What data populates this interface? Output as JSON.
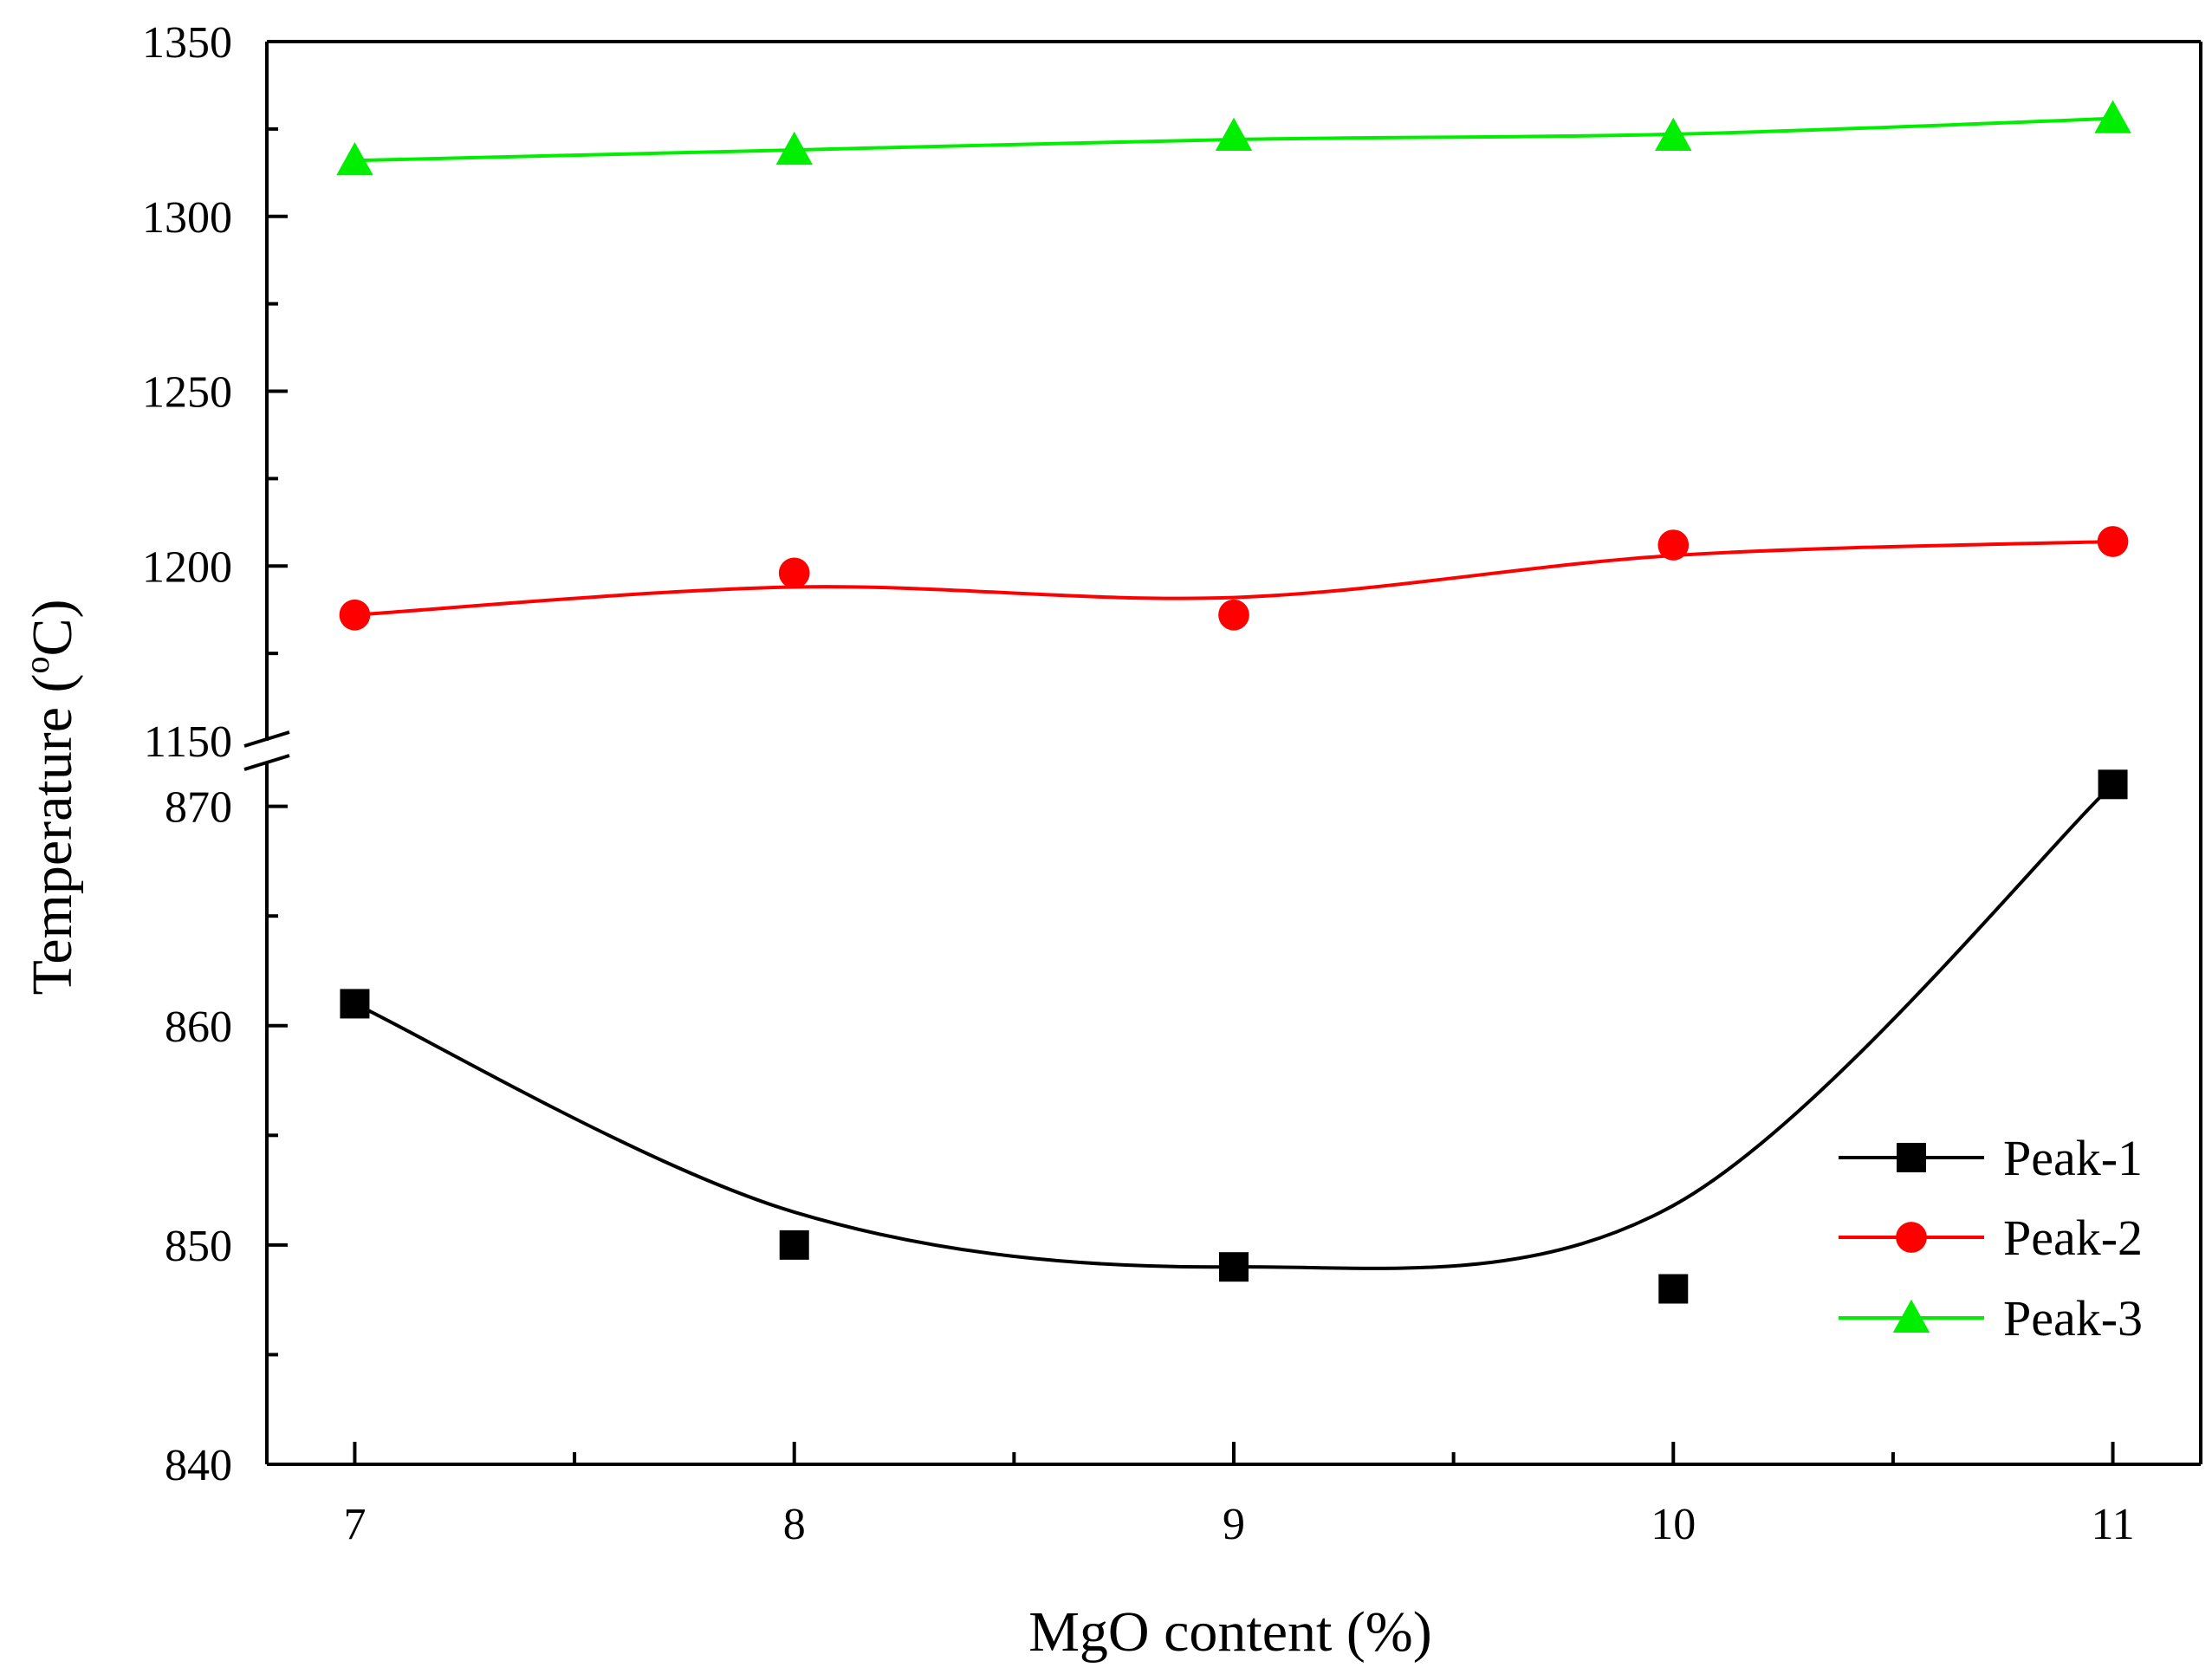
{
  "chart_data": {
    "type": "line",
    "title": "",
    "xlabel": "MgO content (%)",
    "ylabel_main": "Temperature (",
    "ylabel_sup": "o",
    "ylabel_tail": "C)",
    "x": [
      7,
      8,
      9,
      10,
      11
    ],
    "x_ticks": [
      "7",
      "8",
      "9",
      "10",
      "11"
    ],
    "xlim": [
      6.8,
      11.2
    ],
    "broken_y_axis": true,
    "upper_ylim": [
      1150,
      1350
    ],
    "upper_y_ticks": [
      "1150",
      "1200",
      "1250",
      "1300",
      "1350"
    ],
    "lower_ylim": [
      840,
      872
    ],
    "lower_y_ticks": [
      "840",
      "850",
      "860",
      "870"
    ],
    "legend_position": "bottom-right",
    "series": [
      {
        "name": "Peak-1",
        "marker": "square",
        "color": "#000000",
        "segment": "lower",
        "values": [
          861,
          850,
          849,
          848,
          871
        ],
        "fit_curve": [
          861,
          851.5,
          849,
          851.8,
          871
        ]
      },
      {
        "name": "Peak-2",
        "marker": "circle",
        "color": "#ff0000",
        "segment": "upper",
        "values": [
          1186,
          1198,
          1186,
          1206,
          1207
        ],
        "fit_curve": [
          1186,
          1194,
          1191,
          1203,
          1207
        ]
      },
      {
        "name": "Peak-3",
        "marker": "triangle",
        "color": "#00ee00",
        "segment": "upper",
        "values": [
          1316,
          1319,
          1323,
          1323,
          1328
        ],
        "fit_curve": [
          1316,
          1319,
          1322,
          1323.5,
          1328
        ]
      }
    ]
  }
}
